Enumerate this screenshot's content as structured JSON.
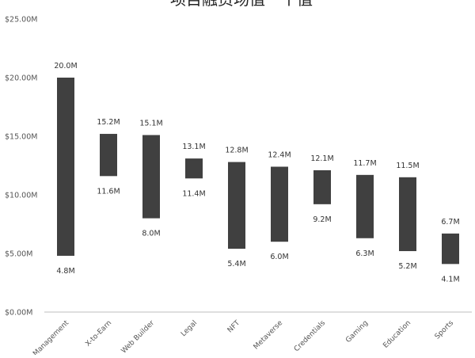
{
  "chart_data": {
    "type": "bar",
    "subtype": "floating-range",
    "title": "项目融资场值一个值",
    "yticks": [
      "$0.00M",
      "$5.00M",
      "$10.00M",
      "$15.00M",
      "$20.00M",
      "$25.00M"
    ],
    "ylim": [
      0,
      25
    ],
    "grid": false,
    "categories": [
      "Asset Management",
      "X-to-Earn",
      "Web Builder",
      "Legal",
      "NFT",
      "Metaverse",
      "Credentials",
      "Gaming",
      "Education",
      "Sports"
    ],
    "high": [
      20.0,
      15.2,
      15.1,
      13.1,
      12.8,
      12.4,
      12.1,
      11.7,
      11.5,
      6.7
    ],
    "low": [
      4.8,
      11.6,
      8.0,
      11.4,
      5.4,
      6.0,
      9.2,
      6.3,
      5.2,
      4.1
    ],
    "high_labels": [
      "20.0M",
      "15.2M",
      "15.1M",
      "13.1M",
      "12.8M",
      "12.4M",
      "12.1M",
      "11.7M",
      "11.5M",
      "6.7M"
    ],
    "low_labels": [
      "4.8M",
      "11.6M",
      "8.0M",
      "11.4M",
      "5.4M",
      "6.0M",
      "9.2M",
      "6.3M",
      "5.2M",
      "4.1M"
    ],
    "bar_color": "#404040",
    "axis_color": "#bfbfbf"
  }
}
